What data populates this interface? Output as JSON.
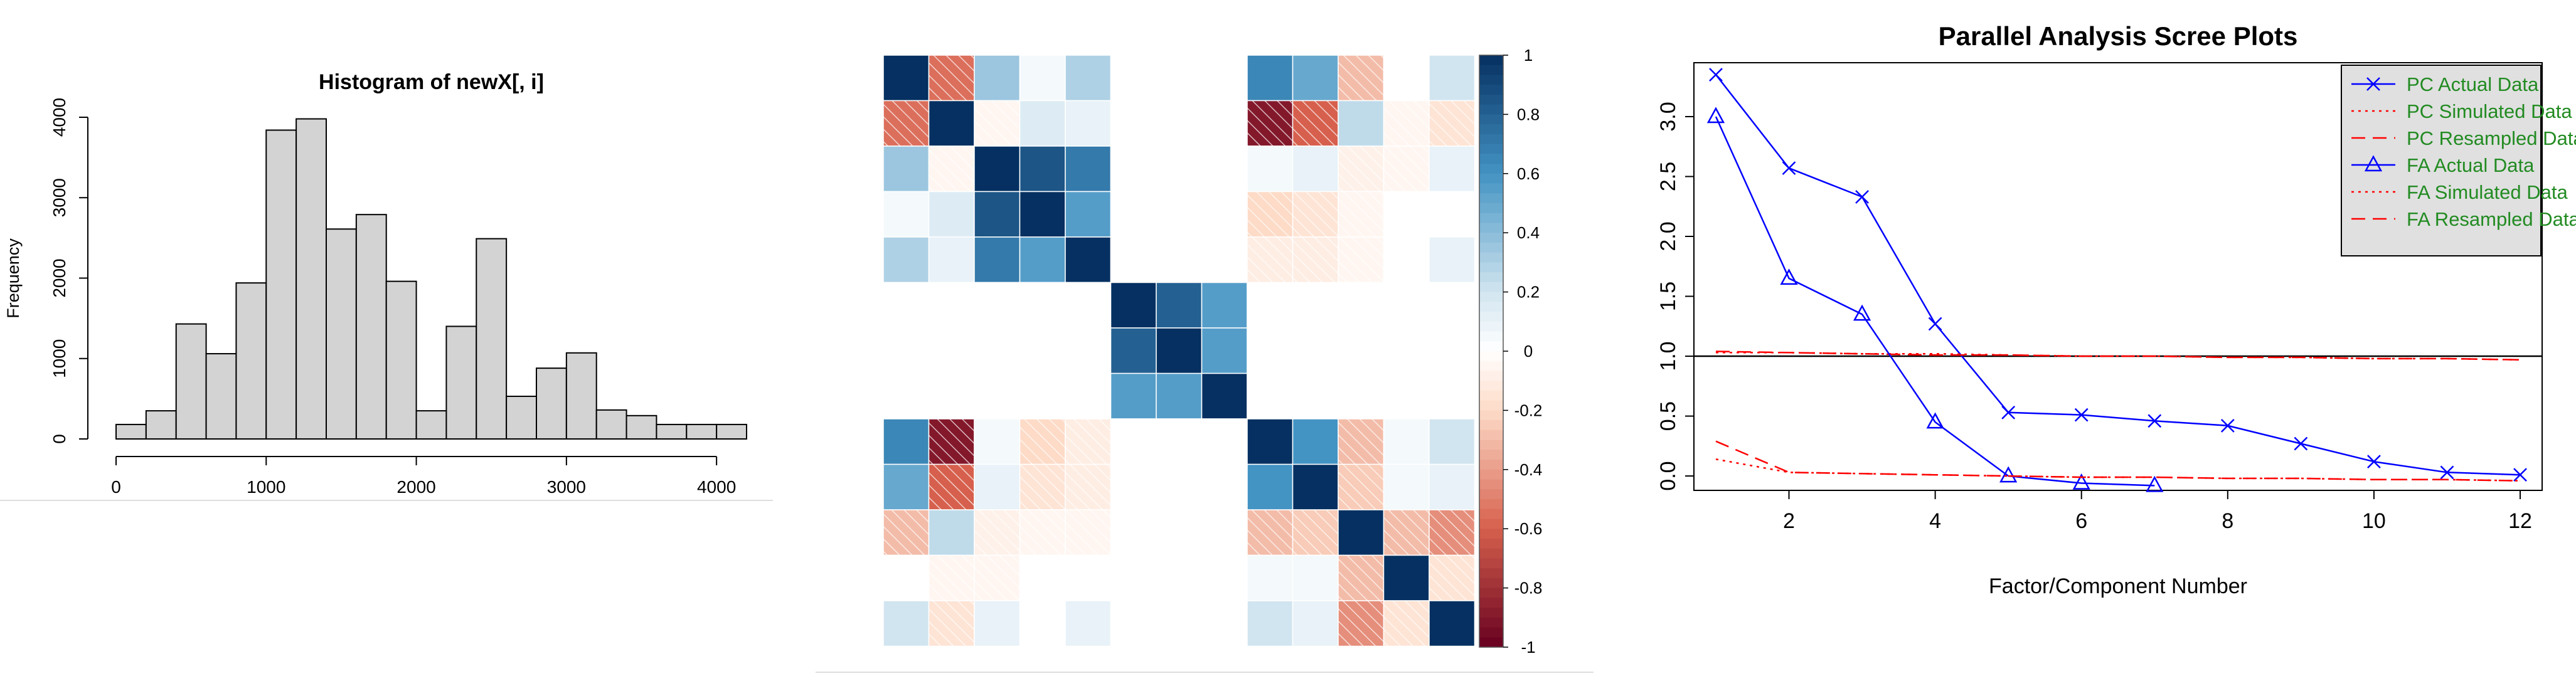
{
  "chart_data": [
    {
      "type": "bar",
      "title": "Histogram of newX[, i]",
      "xlabel": "",
      "ylabel": "Frequency",
      "bin_edges": [
        0,
        200,
        400,
        600,
        800,
        1000,
        1200,
        1400,
        1600,
        1800,
        2000,
        2200,
        2400,
        2600,
        2800,
        3000,
        3200,
        3400,
        3600,
        3800,
        4000,
        4200
      ],
      "values": [
        180,
        350,
        1430,
        1060,
        1940,
        3840,
        3980,
        2610,
        2790,
        1960,
        350,
        1400,
        2490,
        530,
        880,
        1070,
        360,
        290,
        180,
        180,
        180
      ],
      "xlim": [
        0,
        4200
      ],
      "ylim": [
        0,
        4000
      ],
      "xticks": [
        "0",
        "1000",
        "2000",
        "3000",
        "4000"
      ],
      "yticks": [
        "0",
        "1000",
        "2000",
        "3000",
        "4000"
      ],
      "colors": {
        "bar_fill": "#d3d3d3",
        "bar_stroke": "#000000"
      }
    },
    {
      "type": "heatmap",
      "title": "",
      "n": 13,
      "matrix": [
        [
          1.0,
          -0.55,
          0.35,
          0.05,
          0.3,
          0.0,
          0.0,
          0.0,
          0.65,
          0.5,
          -0.3,
          0.0,
          0.2
        ],
        [
          -0.55,
          1.0,
          -0.05,
          0.15,
          0.1,
          0.0,
          0.0,
          0.0,
          -0.9,
          -0.6,
          0.25,
          -0.05,
          -0.15
        ],
        [
          0.35,
          -0.05,
          1.0,
          0.85,
          0.7,
          0.0,
          0.0,
          0.0,
          0.05,
          0.1,
          -0.08,
          -0.05,
          0.1
        ],
        [
          0.05,
          0.15,
          0.85,
          1.0,
          0.55,
          0.0,
          0.0,
          0.0,
          -0.2,
          -0.15,
          -0.05,
          0.0,
          0.0
        ],
        [
          0.3,
          0.1,
          0.7,
          0.55,
          1.0,
          0.0,
          0.0,
          0.0,
          -0.1,
          -0.1,
          -0.05,
          0.0,
          0.1
        ],
        [
          0.0,
          0.0,
          0.0,
          0.0,
          0.0,
          1.0,
          0.8,
          0.55,
          0.0,
          0.0,
          0.0,
          0.0,
          0.0
        ],
        [
          0.0,
          0.0,
          0.0,
          0.0,
          0.0,
          0.8,
          1.0,
          0.55,
          0.0,
          0.0,
          0.0,
          0.0,
          0.0
        ],
        [
          0.0,
          0.0,
          0.0,
          0.0,
          0.0,
          0.55,
          0.55,
          1.0,
          0.0,
          0.0,
          0.0,
          0.0,
          0.0
        ],
        [
          0.65,
          -0.9,
          0.05,
          -0.2,
          -0.1,
          0.0,
          0.0,
          0.0,
          1.0,
          0.6,
          -0.3,
          0.05,
          0.2
        ],
        [
          0.5,
          -0.6,
          0.1,
          -0.15,
          -0.1,
          0.0,
          0.0,
          0.0,
          0.6,
          1.0,
          -0.25,
          0.05,
          0.1
        ],
        [
          -0.3,
          0.25,
          -0.08,
          -0.05,
          -0.05,
          0.0,
          0.0,
          0.0,
          -0.3,
          -0.25,
          1.0,
          -0.3,
          -0.45
        ],
        [
          0.0,
          -0.05,
          -0.05,
          0.0,
          0.0,
          0.0,
          0.0,
          0.0,
          0.05,
          0.05,
          -0.3,
          1.0,
          -0.15
        ],
        [
          0.2,
          -0.15,
          0.1,
          0.0,
          0.1,
          0.0,
          0.0,
          0.0,
          0.2,
          0.1,
          -0.45,
          -0.15,
          1.0
        ]
      ],
      "range": [
        -1,
        1
      ],
      "colorbar_ticks": [
        "1",
        "0.8",
        "0.6",
        "0.4",
        "0.2",
        "0",
        "-0.2",
        "-0.4",
        "-0.6",
        "-0.8",
        "-1"
      ],
      "colors": {
        "negative": "#67001f",
        "mid_negative": "#d6604d",
        "light_negative": "#fddbc7",
        "center": "#ffffff",
        "light_positive": "#d1e5f0",
        "mid_positive": "#4393c3",
        "positive": "#053061"
      }
    },
    {
      "type": "line",
      "title": "Parallel Analysis Scree Plots",
      "xlabel": "Factor/Component Number",
      "ylabel": "",
      "xlim": [
        0.7,
        12.3
      ],
      "ylim": [
        -0.12,
        3.45
      ],
      "xticks": [
        "2",
        "4",
        "6",
        "8",
        "10",
        "12"
      ],
      "yticks": [
        "0.0",
        "0.5",
        "1.0",
        "1.5",
        "2.0",
        "2.5",
        "3.0"
      ],
      "reference_line": 1.0,
      "series": [
        {
          "name": "PC  Actual Data",
          "style": "solid",
          "marker": "x",
          "color": "#0000ff",
          "x": [
            1,
            2,
            3,
            4,
            5,
            6,
            7,
            8,
            9,
            10,
            11,
            12
          ],
          "y": [
            3.35,
            2.57,
            2.33,
            1.27,
            0.53,
            0.51,
            0.46,
            0.42,
            0.27,
            0.12,
            0.03,
            0.01
          ]
        },
        {
          "name": "PC  Simulated Data",
          "style": "dotted",
          "marker": "",
          "color": "#ff0000",
          "x": [
            1,
            2,
            3,
            4,
            5,
            6,
            7,
            8,
            9,
            10,
            11,
            12
          ],
          "y": [
            1.03,
            1.03,
            1.02,
            1.02,
            1.01,
            1.0,
            1.0,
            0.99,
            0.99,
            0.98,
            0.98,
            0.97
          ]
        },
        {
          "name": "PC  Resampled Data",
          "style": "dashed",
          "marker": "",
          "color": "#ff0000",
          "x": [
            1,
            2,
            3,
            4,
            5,
            6,
            7,
            8,
            9,
            10,
            11,
            12
          ],
          "y": [
            1.04,
            1.03,
            1.02,
            1.01,
            1.01,
            1.0,
            1.0,
            0.99,
            0.99,
            0.98,
            0.98,
            0.97
          ]
        },
        {
          "name": "FA  Actual Data",
          "style": "solid",
          "marker": "triangle",
          "color": "#0000ff",
          "x": [
            1,
            2,
            3,
            4,
            5,
            6,
            7
          ],
          "y": [
            3.0,
            1.65,
            1.35,
            0.45,
            0.0,
            -0.06,
            -0.08
          ]
        },
        {
          "name": "FA  Simulated Data",
          "style": "dotted",
          "marker": "",
          "color": "#ff0000",
          "x": [
            1,
            2,
            3,
            4,
            5,
            6,
            7,
            8,
            9,
            10,
            11,
            12
          ],
          "y": [
            0.14,
            0.03,
            0.02,
            0.01,
            0.0,
            -0.01,
            -0.01,
            -0.02,
            -0.02,
            -0.03,
            -0.03,
            -0.04
          ]
        },
        {
          "name": "FA  Resampled Data",
          "style": "dashed",
          "marker": "",
          "color": "#ff0000",
          "x": [
            1,
            2,
            3,
            4,
            5,
            6,
            7,
            8,
            9,
            10,
            11,
            12
          ],
          "y": [
            0.29,
            0.03,
            0.02,
            0.01,
            0.0,
            -0.01,
            -0.01,
            -0.02,
            -0.02,
            -0.03,
            -0.03,
            -0.04
          ]
        }
      ],
      "legend": {
        "placement": "top-right",
        "text_color": "#228b22",
        "background": "#e0e0e0"
      }
    }
  ]
}
